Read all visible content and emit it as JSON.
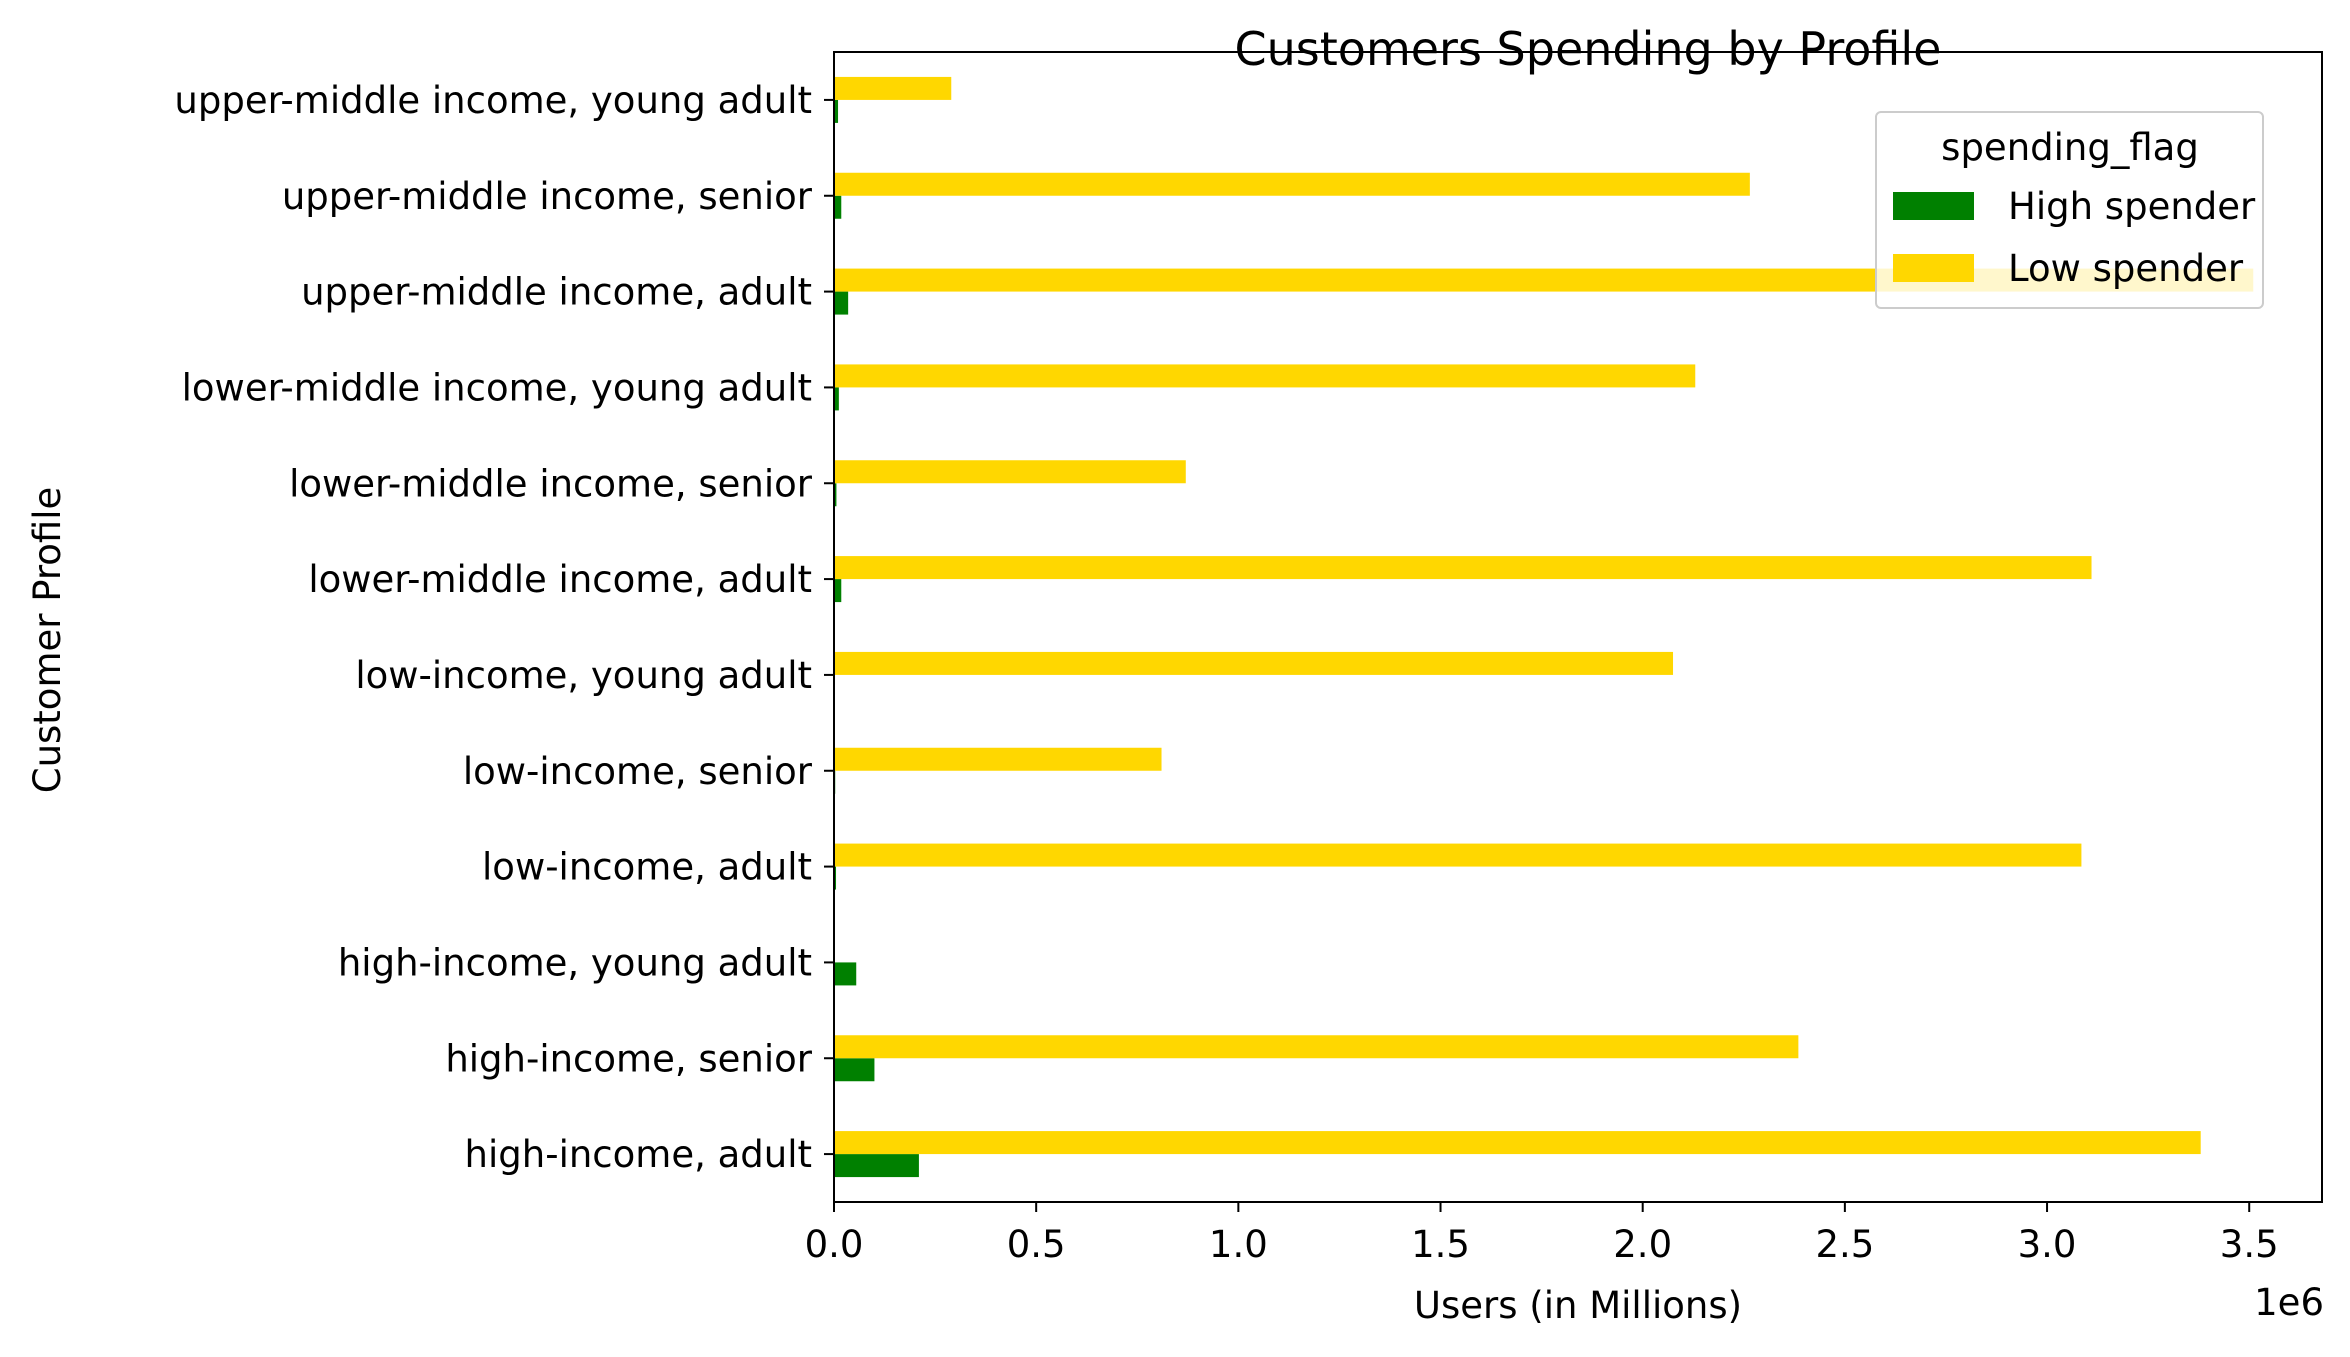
{
  "chart_data": {
    "type": "bar",
    "orientation": "horizontal",
    "title": "Customers Spending by Profile",
    "xlabel": "Users (in Millions)",
    "ylabel": "Customer Profile",
    "x_offset_text": "1e6",
    "xlim": [
      0,
      3.68
    ],
    "x_ticks": [
      "0.0",
      "0.5",
      "1.0",
      "1.5",
      "2.0",
      "2.5",
      "3.0",
      "3.5"
    ],
    "x_tick_values": [
      0,
      0.5,
      1.0,
      1.5,
      2.0,
      2.5,
      3.0,
      3.5
    ],
    "categories": [
      "high-income, adult",
      "high-income, senior",
      "high-income, young adult",
      "low-income, adult",
      "low-income, senior",
      "low-income, young adult",
      "lower-middle income, adult",
      "lower-middle income, senior",
      "lower-middle income, young adult",
      "upper-middle income, adult",
      "upper-middle income, senior",
      "upper-middle income, young adult"
    ],
    "series": [
      {
        "name": "High spender",
        "color": "#008000",
        "values": [
          0.21,
          0.1,
          0.055,
          0.005,
          0.003,
          0.002,
          0.018,
          0.006,
          0.012,
          0.035,
          0.018,
          0.01
        ]
      },
      {
        "name": "Low spender",
        "color": "#ffd700",
        "values": [
          3.38,
          2.385,
          0.0,
          3.085,
          0.81,
          2.075,
          3.11,
          0.87,
          2.13,
          3.51,
          2.265,
          0.29
        ]
      }
    ],
    "legend": {
      "title": "spending_flag",
      "position": "upper right"
    },
    "grid": false
  }
}
